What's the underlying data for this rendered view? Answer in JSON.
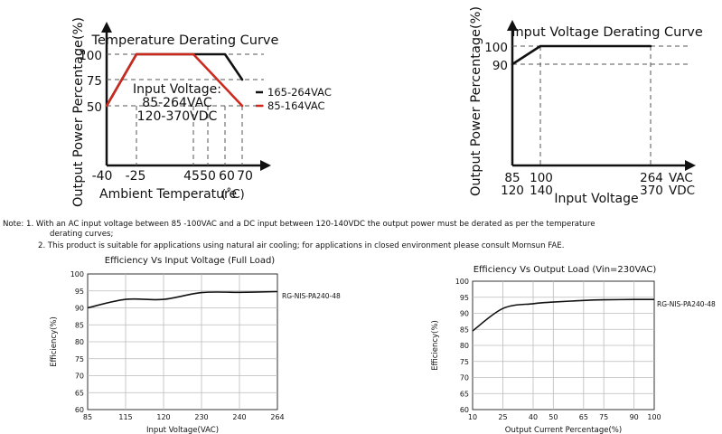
{
  "chart_data": [
    {
      "type": "line",
      "title": "Temperature  Derating  Curve",
      "xlabel": "Ambient Temperature",
      "xlabel_unit": "(˚C)",
      "ylabel": "Output Power Percentage(%)",
      "x_ticks": [
        "-40",
        "-25",
        "45",
        "50",
        "60",
        "70"
      ],
      "y_ticks": [
        "50",
        "75",
        "100"
      ],
      "annotation_title": "Input Voltage:",
      "annotation_lines": [
        "85-264VAC",
        "120-370VDC"
      ],
      "series": [
        {
          "name": "165-264VAC",
          "color": "#111111",
          "points": [
            [
              -40,
              50
            ],
            [
              -25,
              100
            ],
            [
              60,
              100
            ],
            [
              70,
              75
            ]
          ]
        },
        {
          "name": "85-164VAC",
          "color": "#cc2a1e",
          "points": [
            [
              -40,
              50
            ],
            [
              -25,
              100
            ],
            [
              45,
              100
            ],
            [
              70,
              50
            ]
          ]
        }
      ],
      "grid": false,
      "legend": "right"
    },
    {
      "type": "line",
      "title": "Input Voltage Derating Curve",
      "xlabel": "Input Voltage",
      "ylabel": "Output Power Percentage(%)",
      "x_ticks_ac": [
        "85",
        "100",
        "264"
      ],
      "x_ticks_dc": [
        "120",
        "140",
        "370"
      ],
      "x_unit_ac": "VAC",
      "x_unit_dc": "VDC",
      "y_ticks": [
        "90",
        "100"
      ],
      "series": [
        {
          "color": "#111111",
          "points": [
            [
              85,
              90
            ],
            [
              100,
              100
            ],
            [
              264,
              100
            ]
          ]
        }
      ]
    },
    {
      "type": "line",
      "title": "Efficiency Vs Input Voltage (Full Load)",
      "xlabel": "Input Voltage(VAC)",
      "ylabel": "Efficiency(%)",
      "categories": [
        "85",
        "115",
        "120",
        "230",
        "240",
        "264"
      ],
      "ylim": [
        60,
        100
      ],
      "y_ticks": [
        "60",
        "65",
        "70",
        "75",
        "80",
        "85",
        "90",
        "95",
        "100"
      ],
      "grid": true,
      "series": [
        {
          "name": "RG-NIS-PA240-48",
          "values": [
            90,
            92.5,
            92.5,
            94.5,
            94.6,
            94.8
          ]
        }
      ]
    },
    {
      "type": "line",
      "title": "Efficiency Vs Output Load (Vin=230VAC)",
      "xlabel": "Output Current Percentage(%)",
      "ylabel": "Efficiency(%)",
      "x_ticks": [
        "10",
        "25",
        "40",
        "50",
        "65",
        "75",
        "90",
        "100"
      ],
      "ylim": [
        60,
        100
      ],
      "y_ticks": [
        "60",
        "65",
        "70",
        "75",
        "80",
        "85",
        "90",
        "95",
        "100"
      ],
      "grid": true,
      "series": [
        {
          "name": "RG-NIS-PA240-48",
          "values": [
            84.5,
            91.5,
            93,
            93.5,
            94,
            94.2,
            94.3,
            94.3
          ]
        }
      ]
    }
  ],
  "notes": {
    "line1": "Note: 1. With an AC input voltage between 85 -100VAC and a DC input between 120-140VDC the output power must be derated as per the temperature",
    "line1b": "derating curves;",
    "line2": "2. This product is suitable for applications using natural air cooling; for applications in closed environment please consult Mornsun FAE."
  }
}
